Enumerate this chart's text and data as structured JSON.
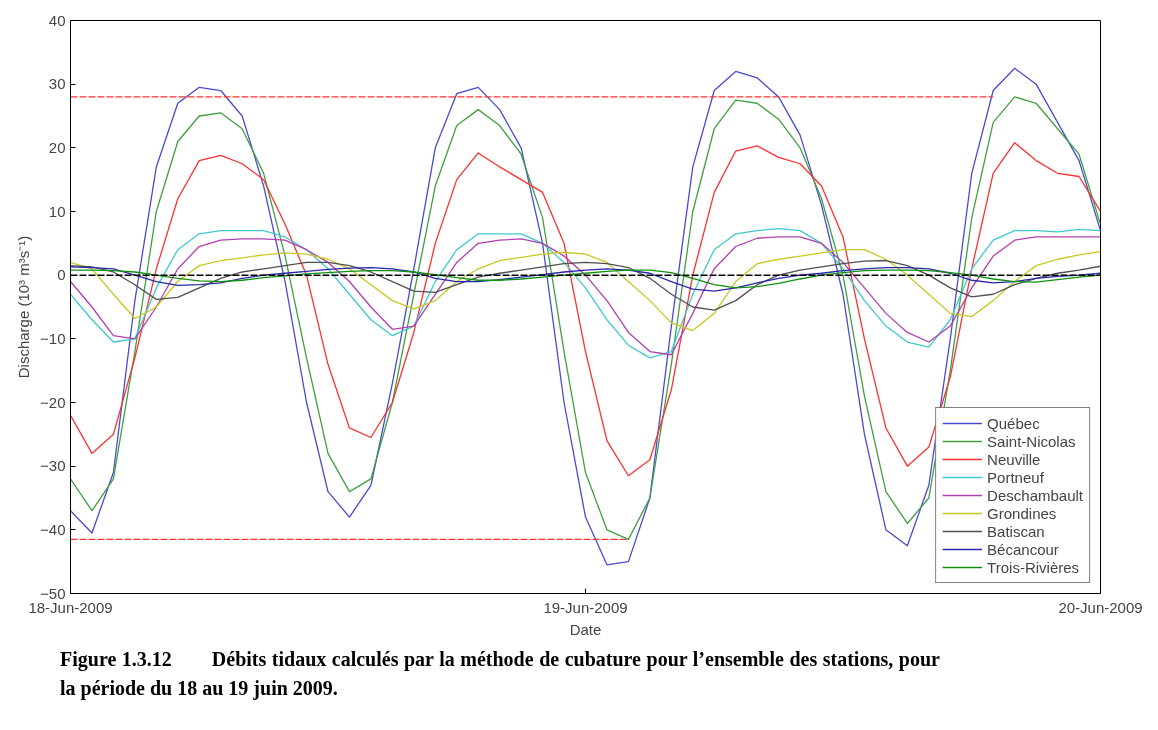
{
  "chart_data": {
    "type": "line",
    "xlabel": "Date",
    "ylabel": "Discharge (10³ m³s⁻¹)",
    "x": [
      "2009-06-18T00:00",
      "2009-06-18T01:00",
      "2009-06-18T02:00",
      "2009-06-18T03:00",
      "2009-06-18T04:00",
      "2009-06-18T05:00",
      "2009-06-18T06:00",
      "2009-06-18T07:00",
      "2009-06-18T08:00",
      "2009-06-18T09:00",
      "2009-06-18T10:00",
      "2009-06-18T11:00",
      "2009-06-18T12:00",
      "2009-06-18T13:00",
      "2009-06-18T14:00",
      "2009-06-18T15:00",
      "2009-06-18T16:00",
      "2009-06-18T17:00",
      "2009-06-18T18:00",
      "2009-06-18T19:00",
      "2009-06-18T20:00",
      "2009-06-18T21:00",
      "2009-06-18T22:00",
      "2009-06-18T23:00",
      "2009-06-19T00:00",
      "2009-06-19T01:00",
      "2009-06-19T02:00",
      "2009-06-19T03:00",
      "2009-06-19T04:00",
      "2009-06-19T05:00",
      "2009-06-19T06:00",
      "2009-06-19T07:00",
      "2009-06-19T08:00",
      "2009-06-19T09:00",
      "2009-06-19T10:00",
      "2009-06-19T11:00",
      "2009-06-19T12:00",
      "2009-06-19T13:00",
      "2009-06-19T14:00",
      "2009-06-19T15:00",
      "2009-06-19T16:00",
      "2009-06-19T17:00",
      "2009-06-19T18:00",
      "2009-06-19T19:00",
      "2009-06-19T20:00",
      "2009-06-19T21:00",
      "2009-06-19T22:00",
      "2009-06-19T23:00",
      "2009-06-20T00:00"
    ],
    "xlim": [
      "2009-06-18",
      "2009-06-20"
    ],
    "xticks": [
      {
        "value": "2009-06-18",
        "label": "18-Jun-2009"
      },
      {
        "value": "2009-06-19",
        "label": "19-Jun-2009"
      },
      {
        "value": "2009-06-20",
        "label": "20-Jun-2009"
      }
    ],
    "ylim": [
      -50,
      40
    ],
    "yticks": [
      -50,
      -40,
      -30,
      -20,
      -10,
      0,
      10,
      20,
      30,
      40
    ],
    "grid": false,
    "legend": "bottom right",
    "line_style": "solid",
    "marker": "none",
    "series": [
      {
        "name": "Québec",
        "color": "#4a4ad0",
        "values": [
          -37,
          -40.5,
          -31,
          -4,
          17,
          27,
          29.5,
          29,
          25,
          14,
          -1,
          -20,
          -34,
          -38,
          -33,
          -17,
          1,
          20,
          28.5,
          29.5,
          26,
          20,
          5,
          -20,
          -38,
          -45.5,
          -45,
          -35,
          -8,
          17,
          29,
          32,
          31,
          28,
          22,
          11,
          -3,
          -25,
          -40,
          -42.5,
          -33,
          -10,
          16,
          29,
          32.5,
          30,
          24,
          18,
          7
        ]
      },
      {
        "name": "Saint-Nicolas",
        "color": "#40a040",
        "values": [
          -32,
          -37,
          -32,
          -12,
          10,
          21,
          25,
          25.5,
          23,
          16,
          3,
          -13,
          -28,
          -34,
          -32,
          -20,
          -3,
          14,
          23.5,
          26,
          23.5,
          19,
          9,
          -12,
          -31,
          -40,
          -41.5,
          -35,
          -14,
          10,
          23,
          27.5,
          27,
          24.5,
          20,
          12,
          0,
          -19,
          -34,
          -39,
          -35,
          -15,
          9,
          24,
          28,
          27,
          23,
          19,
          8
        ]
      },
      {
        "name": "Neuville",
        "color": "#ff3030",
        "values": [
          -22,
          -28,
          -25,
          -13,
          1,
          12,
          18,
          18.8,
          17.5,
          15,
          8,
          0,
          -14,
          -24,
          -25.5,
          -20,
          -9,
          5,
          15,
          19.2,
          17,
          15,
          13,
          5,
          -12,
          -26,
          -31.5,
          -29,
          -18,
          0,
          13,
          19.5,
          20.3,
          18.5,
          17.5,
          14,
          6,
          -10,
          -24,
          -30,
          -27,
          -16,
          1,
          16,
          20.8,
          18,
          16,
          15.5,
          10
        ]
      },
      {
        "name": "Portneuf",
        "color": "#40c8d0",
        "values": [
          -3,
          -7,
          -10.5,
          -10,
          -2,
          4,
          6.5,
          7,
          7,
          7,
          6,
          4,
          1,
          -3,
          -7,
          -9.5,
          -8,
          -1,
          4,
          6.5,
          6.5,
          6.5,
          5,
          2,
          -2,
          -7,
          -11,
          -13,
          -12,
          -3,
          4,
          6.5,
          7,
          7.3,
          7,
          5,
          1,
          -4,
          -8,
          -10.5,
          -11.3,
          -7,
          1,
          5.5,
          7,
          7,
          6.8,
          7.2,
          7
        ]
      },
      {
        "name": "Deschambault",
        "color": "#b040b0",
        "values": [
          -1,
          -5,
          -9.5,
          -10,
          -5,
          1,
          4.5,
          5.5,
          5.7,
          5.7,
          5.5,
          4,
          2,
          -1,
          -5,
          -8.5,
          -8,
          -3,
          2,
          5,
          5.5,
          5.7,
          5,
          3,
          0,
          -4,
          -9,
          -12,
          -12.5,
          -6,
          1,
          4.5,
          5.8,
          6,
          6,
          5,
          2,
          -2,
          -6,
          -9,
          -10.5,
          -8,
          -2,
          3,
          5.5,
          6,
          6,
          6,
          6
        ]
      },
      {
        "name": "Grondines",
        "color": "#c8c820",
        "values": [
          2,
          1,
          -3,
          -6.8,
          -5,
          -1,
          1.5,
          2.3,
          2.7,
          3.2,
          3.5,
          3.3,
          2.5,
          1,
          -1.5,
          -4,
          -5.3,
          -4,
          -1,
          1,
          2.3,
          2.8,
          3.3,
          3.6,
          3.3,
          2,
          -1,
          -4,
          -7.5,
          -8.7,
          -6,
          -1,
          1.8,
          2.5,
          3,
          3.5,
          4,
          4,
          2.5,
          0,
          -3,
          -6,
          -6.5,
          -4,
          -1,
          1.5,
          2.5,
          3.2,
          3.7
        ]
      },
      {
        "name": "Batiscan",
        "color": "#505050",
        "values": [
          1.5,
          1.3,
          0.5,
          -1.5,
          -3.8,
          -3.5,
          -2,
          -0.5,
          0.5,
          1,
          1.5,
          2,
          2,
          1.5,
          0.5,
          -1,
          -2.5,
          -2.7,
          -1.5,
          -0.3,
          0.3,
          0.8,
          1.3,
          1.8,
          2,
          1.8,
          1.2,
          -0.5,
          -3,
          -5,
          -5.5,
          -4,
          -1.5,
          0,
          0.8,
          1.3,
          1.8,
          2.2,
          2.3,
          1.5,
          0,
          -2,
          -3.4,
          -3,
          -1.5,
          -0.5,
          0.3,
          0.8,
          1.4
        ]
      },
      {
        "name": "Bécancour",
        "color": "#2828a8",
        "values": [
          1.3,
          1.2,
          1,
          0,
          -1,
          -1.6,
          -1.5,
          -1.2,
          -0.5,
          0,
          0.3,
          0.6,
          0.9,
          1.1,
          1.2,
          1,
          0.5,
          -0.5,
          -1,
          -1,
          -0.7,
          -0.3,
          0.1,
          0.5,
          0.8,
          1,
          0.8,
          0.3,
          -1,
          -2.2,
          -2.5,
          -2,
          -1.2,
          -0.5,
          0,
          0.3,
          0.7,
          1,
          1.2,
          1.2,
          1,
          0.3,
          -0.8,
          -1.2,
          -1,
          -0.5,
          -0.2,
          0,
          0.3
        ]
      },
      {
        "name": "Trois-Rivières",
        "color": "#109010",
        "values": [
          0.8,
          0.8,
          0.7,
          0.5,
          0,
          -0.5,
          -0.9,
          -1,
          -0.8,
          -0.4,
          -0.1,
          0.2,
          0.4,
          0.6,
          0.7,
          0.7,
          0.5,
          0.1,
          -0.4,
          -0.8,
          -0.8,
          -0.6,
          -0.3,
          0,
          0.3,
          0.6,
          0.8,
          0.8,
          0.4,
          -0.5,
          -1.5,
          -2,
          -1.8,
          -1.3,
          -0.6,
          0,
          0.4,
          0.7,
          0.8,
          0.8,
          0.7,
          0.4,
          0,
          -0.6,
          -1,
          -1.1,
          -0.7,
          -0.3,
          0
        ]
      },
      {
        "color": "#ff3030",
        "x": [
          "2009-06-18T00:00",
          "2009-06-19T19:00"
        ],
        "values": [
          28,
          28
        ],
        "line_style": "dashed"
      },
      {
        "color": "#ff3030",
        "x": [
          "2009-06-18T00:00",
          "2009-06-19T02:00"
        ],
        "values": [
          -41.5,
          -41.5
        ],
        "line_style": "dashed"
      }
    ],
    "ref_lines": [
      {
        "axis": "y",
        "value": 0,
        "color": "#000000",
        "line_style": "dashed"
      }
    ],
    "annotations": [
      "Figure 1.3.12  Débits tidaux calculés par la méthode de cubature pour l’ensemble des stations, pour la période du 18 au 19 juin 2009."
    ]
  }
}
